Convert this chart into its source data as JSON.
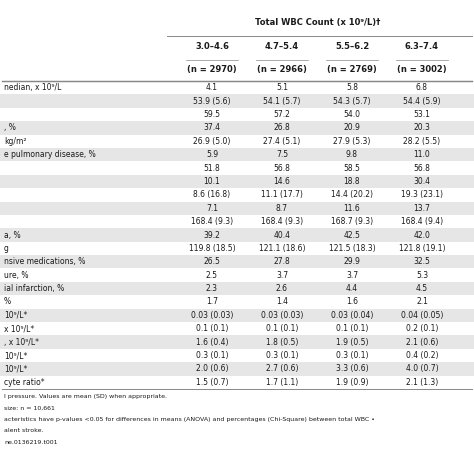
{
  "title": "Total WBC Count (x 10⁹/L)†",
  "col_groups": [
    "3.0–4.6",
    "4.7–5.4",
    "5.5–6.2",
    "6.3–7.4"
  ],
  "col_ns": [
    "(n = 2970)",
    "(n = 2966)",
    "(n = 2769)",
    "(n = 3002)"
  ],
  "row_labels": [
    "nedian, x 10⁹/L",
    "",
    "",
    ", %",
    "kg/m²",
    "e pulmonary disease, %",
    "",
    "",
    "",
    "",
    "",
    "a, %",
    "g",
    "nsive medications, %",
    "ure, %",
    "ial infarction, %",
    "%",
    "10⁹/L*",
    "x 10⁹/L*",
    ", x 10⁹/L*",
    "10⁹/L*",
    "10⁹/L*",
    "cyte ratio*"
  ],
  "col1": [
    "4.1",
    "53.9 (5.6)",
    "59.5",
    "37.4",
    "26.9 (5.0)",
    "5.9",
    "51.8",
    "10.1",
    "8.6 (16.8)",
    "7.1",
    "168.4 (9.3)",
    "39.2",
    "119.8 (18.5)",
    "26.5",
    "2.5",
    "2.3",
    "1.7",
    "0.03 (0.03)",
    "0.1 (0.1)",
    "1.6 (0.4)",
    "0.3 (0.1)",
    "2.0 (0.6)",
    "1.5 (0.7)"
  ],
  "col2": [
    "5.1",
    "54.1 (5.7)",
    "57.2",
    "26.8",
    "27.4 (5.1)",
    "7.5",
    "56.8",
    "14.6",
    "11.1 (17.7)",
    "8.7",
    "168.4 (9.3)",
    "40.4",
    "121.1 (18.6)",
    "27.8",
    "3.7",
    "2.6",
    "1.4",
    "0.03 (0.03)",
    "0.1 (0.1)",
    "1.8 (0.5)",
    "0.3 (0.1)",
    "2.7 (0.6)",
    "1.7 (1.1)"
  ],
  "col3": [
    "5.8",
    "54.3 (5.7)",
    "54.0",
    "20.9",
    "27.9 (5.3)",
    "9.8",
    "58.5",
    "18.8",
    "14.4 (20.2)",
    "11.6",
    "168.7 (9.3)",
    "42.5",
    "121.5 (18.3)",
    "29.9",
    "3.7",
    "4.4",
    "1.6",
    "0.03 (0.04)",
    "0.1 (0.1)",
    "1.9 (0.5)",
    "0.3 (0.1)",
    "3.3 (0.6)",
    "1.9 (0.9)"
  ],
  "col4": [
    "6.8",
    "54.4 (5.9)",
    "53.1",
    "20.3",
    "28.2 (5.5)",
    "11.0",
    "56.8",
    "30.4",
    "19.3 (23.1)",
    "13.7",
    "168.4 (9.4)",
    "42.0",
    "121.8 (19.1)",
    "32.5",
    "5.3",
    "4.5",
    "2.1",
    "0.04 (0.05)",
    "0.2 (0.1)",
    "2.1 (0.6)",
    "0.4 (0.2)",
    "4.0 (0.7)",
    "2.1 (1.3)"
  ],
  "footnotes": [
    "l pressure. Values are mean (SD) when appropriate.",
    "size: n = 10,661",
    "acteristics have p-values <0.05 for differences in means (ANOVA) and percentages (Chi-Square) between total WBC •",
    "alent stroke.",
    "ne.0136219.t001"
  ],
  "bg_white": "#ffffff",
  "bg_gray": "#e6e6e6",
  "text_color": "#1a1a1a",
  "border_color": "#888888",
  "gray_rows": [
    1,
    3,
    5,
    7,
    9,
    11,
    13,
    15,
    17,
    19,
    21
  ]
}
